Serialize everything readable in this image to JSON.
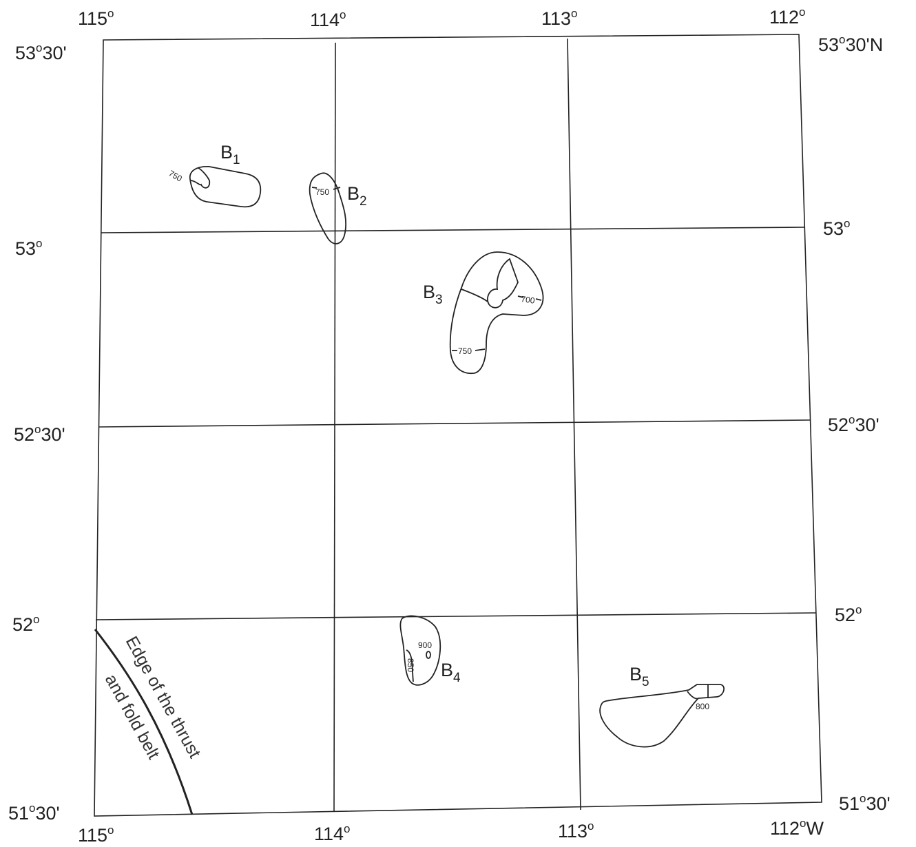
{
  "map": {
    "lon_top": [
      {
        "deg": "115",
        "sup": "o"
      },
      {
        "deg": "114",
        "sup": "o"
      },
      {
        "deg": "113",
        "sup": "o"
      },
      {
        "deg": "112",
        "sup": "o"
      }
    ],
    "lon_bottom": [
      {
        "deg": "115",
        "sup": "o",
        "suffix": ""
      },
      {
        "deg": "114",
        "sup": "o",
        "suffix": ""
      },
      {
        "deg": "113",
        "sup": "o",
        "suffix": ""
      },
      {
        "deg": "112",
        "sup": "o",
        "suffix": "W"
      }
    ],
    "lat_left": [
      {
        "deg": "53",
        "sup": "o",
        "min": "30'"
      },
      {
        "deg": "53",
        "sup": "o",
        "min": ""
      },
      {
        "deg": "52",
        "sup": "o",
        "min": "30'"
      },
      {
        "deg": "52",
        "sup": "o",
        "min": ""
      },
      {
        "deg": "51",
        "sup": "o",
        "min": "30'"
      }
    ],
    "lat_right": [
      {
        "deg": "53",
        "sup": "o",
        "min": "30'N"
      },
      {
        "deg": "53",
        "sup": "o",
        "min": ""
      },
      {
        "deg": "52",
        "sup": "o",
        "min": "30'"
      },
      {
        "deg": "52",
        "sup": "o",
        "min": ""
      },
      {
        "deg": "51",
        "sup": "o",
        "min": "30'"
      }
    ],
    "basins": [
      {
        "name": "B",
        "sub": "1",
        "contours": [
          "750"
        ]
      },
      {
        "name": "B",
        "sub": "2",
        "contours": [
          "750"
        ]
      },
      {
        "name": "B",
        "sub": "3",
        "contours": [
          "700",
          "750"
        ]
      },
      {
        "name": "B",
        "sub": "4",
        "contours": [
          "900",
          "850"
        ]
      },
      {
        "name": "B",
        "sub": "5",
        "contours": [
          "800"
        ]
      }
    ],
    "edge_label": {
      "line1": "Edge of the thrust",
      "line2": "and fold belt"
    }
  }
}
